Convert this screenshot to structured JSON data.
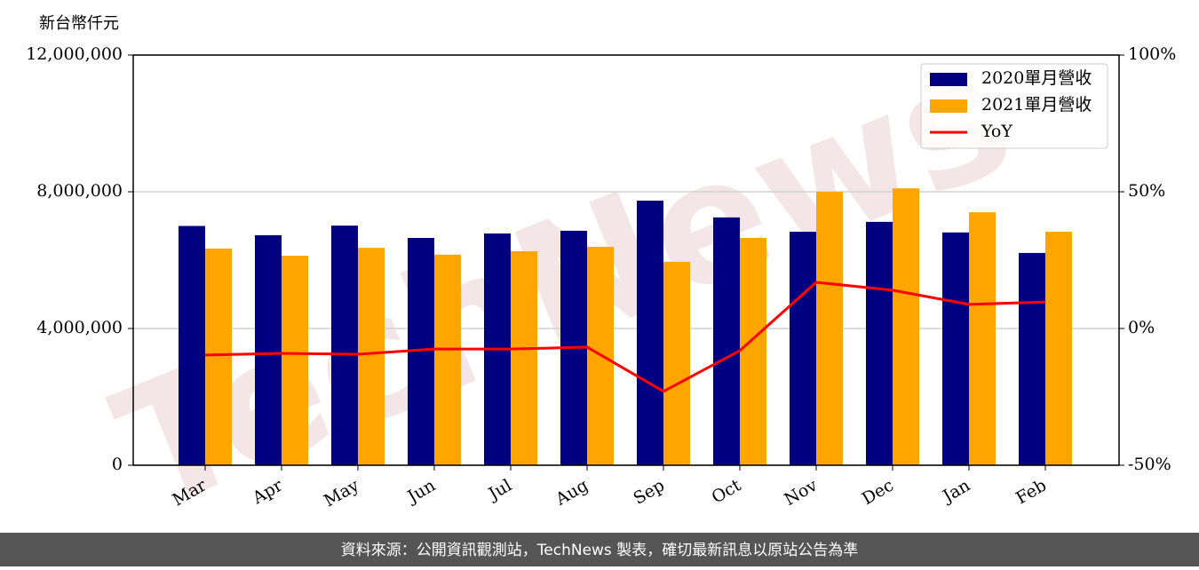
{
  "chart_data": {
    "type": "bar",
    "y_label": "新台幣仟元",
    "watermark": "TechNews",
    "source": "資料來源：公開資訊觀測站，TechNews 製表，確切最新訊息以原站公告為準",
    "categories": [
      "Mar",
      "Apr",
      "May",
      "Jun",
      "Jul",
      "Aug",
      "Sep",
      "Oct",
      "Nov",
      "Dec",
      "Jan",
      "Feb"
    ],
    "series": [
      {
        "name": "2020單月營收",
        "type": "bar",
        "color": "#000080",
        "values": [
          7000000,
          6730000,
          7010000,
          6650000,
          6780000,
          6860000,
          7740000,
          7250000,
          6830000,
          7120000,
          6810000,
          6210000
        ]
      },
      {
        "name": "2021單月營收",
        "type": "bar",
        "color": "#ffa500",
        "values": [
          6340000,
          6130000,
          6360000,
          6160000,
          6260000,
          6390000,
          5950000,
          6650000,
          8000000,
          8100000,
          7400000,
          6830000
        ]
      },
      {
        "name": "YoY",
        "type": "line",
        "axis": "y2",
        "color": "#ff0000",
        "values": [
          -9.7,
          -9.1,
          -9.4,
          -7.5,
          -7.5,
          -6.8,
          -23,
          -8.1,
          16.9,
          14,
          8.8,
          9.7
        ]
      }
    ],
    "ylim": [
      0,
      12000000
    ],
    "yticks": [
      0,
      {
        "value": 4000000,
        "label": "4,000,000"
      },
      {
        "value": 8000000,
        "label": "8,000,000"
      },
      {
        "value": 12000000,
        "label": "12,000,000"
      }
    ],
    "y2lim": [
      -50,
      100
    ],
    "y2ticks": [
      {
        "value": -50,
        "label": "-50%"
      },
      {
        "value": 0,
        "label": "0%"
      },
      {
        "value": 50,
        "label": "50%"
      },
      {
        "value": 100,
        "label": "100%"
      }
    ],
    "grid": true,
    "legend": "upper right"
  }
}
